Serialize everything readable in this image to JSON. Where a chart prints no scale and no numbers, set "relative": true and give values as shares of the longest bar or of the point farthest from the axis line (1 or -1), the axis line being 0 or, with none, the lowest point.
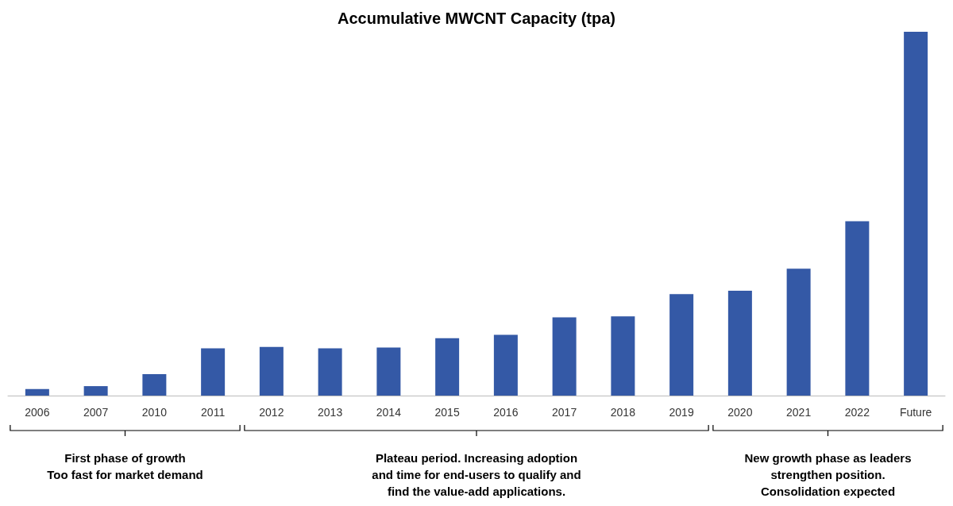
{
  "chart_data": {
    "type": "bar",
    "title": "Accumulative MWCNT Capacity (tpa)",
    "relative": true,
    "categories": [
      "2006",
      "2007",
      "2010",
      "2011",
      "2012",
      "2013",
      "2014",
      "2015",
      "2016",
      "2017",
      "2018",
      "2019",
      "2020",
      "2021",
      "2022",
      "Future"
    ],
    "values": [
      0.018,
      0.026,
      0.059,
      0.13,
      0.134,
      0.13,
      0.132,
      0.158,
      0.167,
      0.215,
      0.218,
      0.279,
      0.288,
      0.349,
      0.479,
      1
    ],
    "color": "#3459a6",
    "annotations": [
      "First phase of growth\nToo fast for market demand",
      "Plateau period. Increasing adoption\nand time for end-users to qualify and\nfind the value-add applications.",
      "New growth phase as leaders\nstrengthen position.\nConsolidation expected"
    ]
  }
}
